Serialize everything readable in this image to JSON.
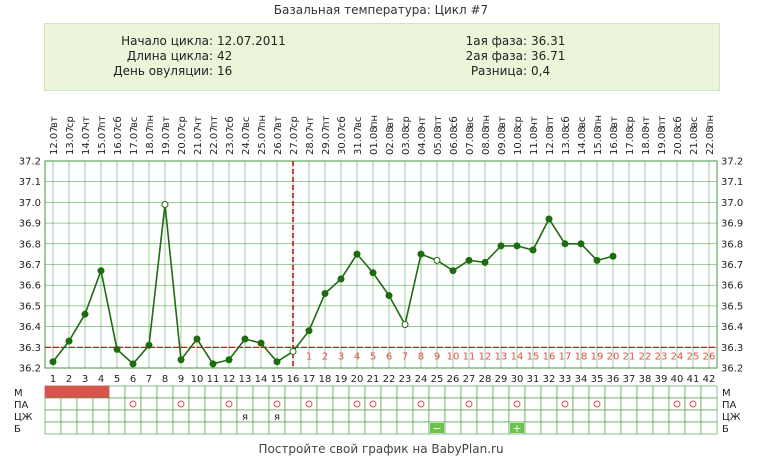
{
  "title": "Базальная температура: Цикл #7",
  "info": {
    "cycle_start_label": "Начало цикла:",
    "cycle_start": "12.07.2011",
    "cycle_length_label": "Длина цикла:",
    "cycle_length": "42",
    "ovulation_day_label": "День овуляции:",
    "ovulation_day": "16",
    "phase1_label": "1ая фаза:",
    "phase1": "36.31",
    "phase2_label": "2ая фаза:",
    "phase2": "36.71",
    "diff_label": "Разница:",
    "diff": "0,4"
  },
  "chart_data": {
    "type": "line",
    "dates": [
      "12.07",
      "13.07",
      "14.07",
      "15.07",
      "16.07",
      "17.07",
      "18.07",
      "19.07",
      "20.07",
      "21.07",
      "22.07",
      "23.07",
      "24.07",
      "25.07",
      "26.07",
      "27.07",
      "28.07",
      "29.07",
      "30.07",
      "31.07",
      "01.08",
      "02.08",
      "03.08",
      "04.08",
      "05.08",
      "06.08",
      "07.08",
      "08.08",
      "09.08",
      "10.08",
      "11.08",
      "12.08",
      "13.08",
      "14.08",
      "15.08",
      "16.08",
      "17.08",
      "18.08",
      "19.08",
      "20.08",
      "21.08",
      "22.08"
    ],
    "weekdays": [
      "вт",
      "ср",
      "чт",
      "пт",
      "сб",
      "вс",
      "пн",
      "вт",
      "ср",
      "чт",
      "пт",
      "сб",
      "вс",
      "пн",
      "вт",
      "ср",
      "чт",
      "пт",
      "сб",
      "вс",
      "пн",
      "вт",
      "ср",
      "чт",
      "пт",
      "сб",
      "вс",
      "пн",
      "вт",
      "ср",
      "чт",
      "пт",
      "сб",
      "вс",
      "пн",
      "вт",
      "ср",
      "чт",
      "пт",
      "сб",
      "вс",
      "пн"
    ],
    "days": [
      1,
      2,
      3,
      4,
      5,
      6,
      7,
      8,
      9,
      10,
      11,
      12,
      13,
      14,
      15,
      16,
      17,
      18,
      19,
      20,
      21,
      22,
      23,
      24,
      25,
      26,
      27,
      28,
      29,
      30,
      31,
      32,
      33,
      34,
      35,
      36,
      37,
      38,
      39,
      40,
      41,
      42
    ],
    "temps": [
      36.23,
      36.33,
      36.46,
      36.67,
      36.29,
      36.22,
      36.31,
      36.99,
      36.24,
      36.34,
      36.22,
      36.24,
      36.34,
      36.32,
      36.23,
      36.28,
      36.38,
      36.56,
      36.63,
      36.75,
      36.66,
      36.55,
      36.41,
      36.75,
      36.72,
      36.67,
      36.72,
      36.71,
      36.79,
      36.79,
      36.77,
      36.92,
      36.8,
      36.8,
      36.72,
      36.74
    ],
    "open_points": [
      8,
      16,
      23,
      25
    ],
    "ylim": [
      36.2,
      37.2
    ],
    "yticks": [
      "37.2",
      "37.1",
      "37.0",
      "36.9",
      "36.8",
      "36.7",
      "36.6",
      "36.5",
      "36.4",
      "36.3",
      "36.2"
    ],
    "baseline": 36.3,
    "ovulation_day": 16,
    "luteal_days": [
      "1",
      "2",
      "3",
      "4",
      "5",
      "6",
      "7",
      "8",
      "9",
      "10",
      "11",
      "12",
      "13",
      "14",
      "15",
      "16",
      "17",
      "18",
      "19",
      "20",
      "21",
      "22",
      "23",
      "24",
      "25",
      "26"
    ],
    "moon_day": 29,
    "grid": true
  },
  "table": {
    "rows": [
      {
        "label": "М",
        "marks": [
          1,
          2,
          3,
          4
        ],
        "symbol": ""
      },
      {
        "label": "ПА",
        "marks": [
          6,
          9,
          12,
          15,
          17,
          20,
          21,
          24,
          27,
          30,
          33,
          35,
          40,
          41
        ],
        "symbol": "○"
      },
      {
        "label": "ЦЖ",
        "marks": [
          13,
          15
        ],
        "symbol": "я"
      },
      {
        "label": "Б",
        "marks": [],
        "symbol": ""
      }
    ],
    "b_minus_day": 25,
    "b_minus": "−",
    "b_plus_day": 30,
    "b_plus": "+"
  },
  "colors": {
    "line": "#1e6b12",
    "grid": "#3c9a3c",
    "baseline": "#c00000",
    "menses": "#d9534f",
    "lutealnum": "#d9534f",
    "panel": "#ebf5d9"
  },
  "footer": "Постройте свой график на BabyPlan.ru"
}
